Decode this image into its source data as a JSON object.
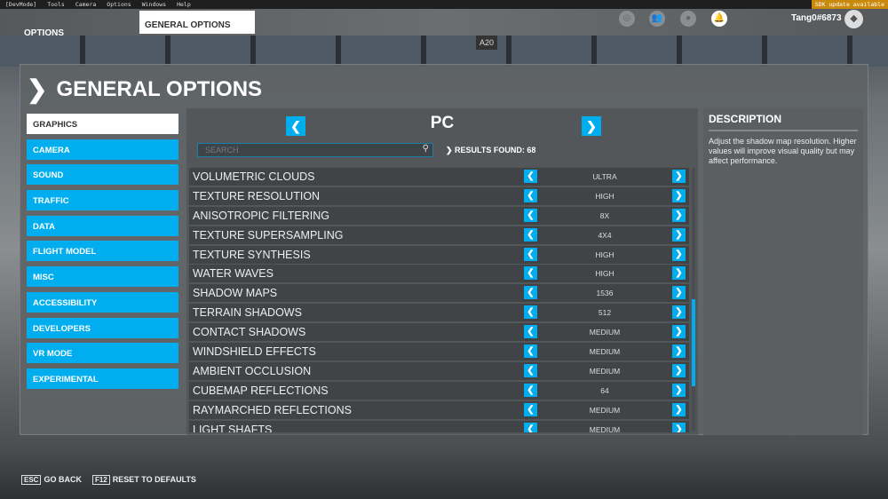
{
  "menubar": {
    "items": [
      "[DevMode]",
      "Tools",
      "Camera",
      "Options",
      "Windows",
      "Help"
    ],
    "sdk_notice": "SDK update available"
  },
  "header": {
    "tab_options": "OPTIONS",
    "tab_general": "GENERAL OPTIONS",
    "username": "Tang0#6873",
    "icons": [
      "activity-icon",
      "friends-icon",
      "profile-icon",
      "notifications-icon"
    ]
  },
  "scene": {
    "gate_sign": "A20"
  },
  "page": {
    "title": "GENERAL OPTIONS"
  },
  "sidebar": {
    "items": [
      {
        "label": "GRAPHICS",
        "active": true
      },
      {
        "label": "CAMERA"
      },
      {
        "label": "SOUND"
      },
      {
        "label": "TRAFFIC"
      },
      {
        "label": "DATA"
      },
      {
        "label": "FLIGHT MODEL"
      },
      {
        "label": "MISC"
      },
      {
        "label": "ACCESSIBILITY"
      },
      {
        "label": "DEVELOPERS"
      },
      {
        "label": "VR MODE"
      },
      {
        "label": "EXPERIMENTAL"
      }
    ]
  },
  "main": {
    "preset": "PC",
    "search_placeholder": "SEARCH",
    "results": "RESULTS FOUND: 68",
    "settings": [
      {
        "label": "VOLUMETRIC CLOUDS",
        "value": "ULTRA"
      },
      {
        "label": "TEXTURE RESOLUTION",
        "value": "HIGH"
      },
      {
        "label": "ANISOTROPIC FILTERING",
        "value": "8X"
      },
      {
        "label": "TEXTURE SUPERSAMPLING",
        "value": "4X4"
      },
      {
        "label": "TEXTURE SYNTHESIS",
        "value": "HIGH"
      },
      {
        "label": "WATER WAVES",
        "value": "HIGH"
      },
      {
        "label": "SHADOW MAPS",
        "value": "1536"
      },
      {
        "label": "TERRAIN SHADOWS",
        "value": "512"
      },
      {
        "label": "CONTACT SHADOWS",
        "value": "MEDIUM"
      },
      {
        "label": "WINDSHIELD EFFECTS",
        "value": "MEDIUM"
      },
      {
        "label": "AMBIENT OCCLUSION",
        "value": "MEDIUM"
      },
      {
        "label": "CUBEMAP REFLECTIONS",
        "value": "64"
      },
      {
        "label": "RAYMARCHED REFLECTIONS",
        "value": "MEDIUM"
      },
      {
        "label": "LIGHT SHAFTS",
        "value": "MEDIUM"
      }
    ]
  },
  "description": {
    "title": "DESCRIPTION",
    "text": "Adjust the shadow map resolution. Higher values will improve visual quality but may affect performance."
  },
  "footer": {
    "back_key": "ESC",
    "back_label": "GO BACK",
    "reset_key": "F12",
    "reset_label": "RESET TO DEFAULTS"
  },
  "colors": {
    "accent": "#00aeef",
    "sdk_badge": "#c98a0c"
  }
}
